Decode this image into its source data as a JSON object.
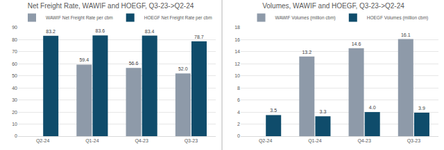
{
  "chart_data": [
    {
      "type": "bar",
      "title": "Net Freight Rate, WAWIF and HOEGF, Q3-23->Q2-24",
      "categories": [
        "Q2-24",
        "Q1-24",
        "Q4-23",
        "Q3-23"
      ],
      "series": [
        {
          "name": "WAWIF Net Freight Rate per cbm",
          "color": "#8e9aa9",
          "values": [
            null,
            59.4,
            56.6,
            52.0
          ],
          "value_labels": [
            null,
            "59.4",
            "56.6",
            "52.0"
          ]
        },
        {
          "name": "HOEGF Net Freight Rate per cbm",
          "color": "#0f4c6b",
          "values": [
            83.2,
            83.6,
            83.4,
            78.7
          ],
          "value_labels": [
            "83.2",
            "83.6",
            "83.4",
            "78.7"
          ]
        }
      ],
      "ylim": [
        0,
        90
      ],
      "yticks": [
        0,
        10,
        20,
        30,
        40,
        50,
        60,
        70,
        80,
        90
      ],
      "grid": true,
      "legend": "top",
      "data_labels": true
    },
    {
      "type": "bar",
      "title": "Volumes, WAWIF and HOEGF, Q3-23->Q2-24",
      "categories": [
        "Q2-24",
        "Q1-24",
        "Q4-23",
        "Q3-23"
      ],
      "series": [
        {
          "name": "WAWIF Volumes (million cbm)",
          "color": "#8e9aa9",
          "values": [
            null,
            13.2,
            14.6,
            16.1
          ],
          "value_labels": [
            null,
            "13.2",
            "14.6",
            "16.1"
          ]
        },
        {
          "name": "HOEGF Volumes (million cbm)",
          "color": "#0f4c6b",
          "values": [
            3.5,
            3.3,
            4.0,
            3.9
          ],
          "value_labels": [
            "3.5",
            "3.3",
            "4.0",
            "3.9"
          ]
        }
      ],
      "ylim": [
        0,
        18
      ],
      "yticks": [
        0,
        2,
        4,
        6,
        8,
        10,
        12,
        14,
        16,
        18
      ],
      "grid": true,
      "legend": "top",
      "data_labels": true
    }
  ]
}
